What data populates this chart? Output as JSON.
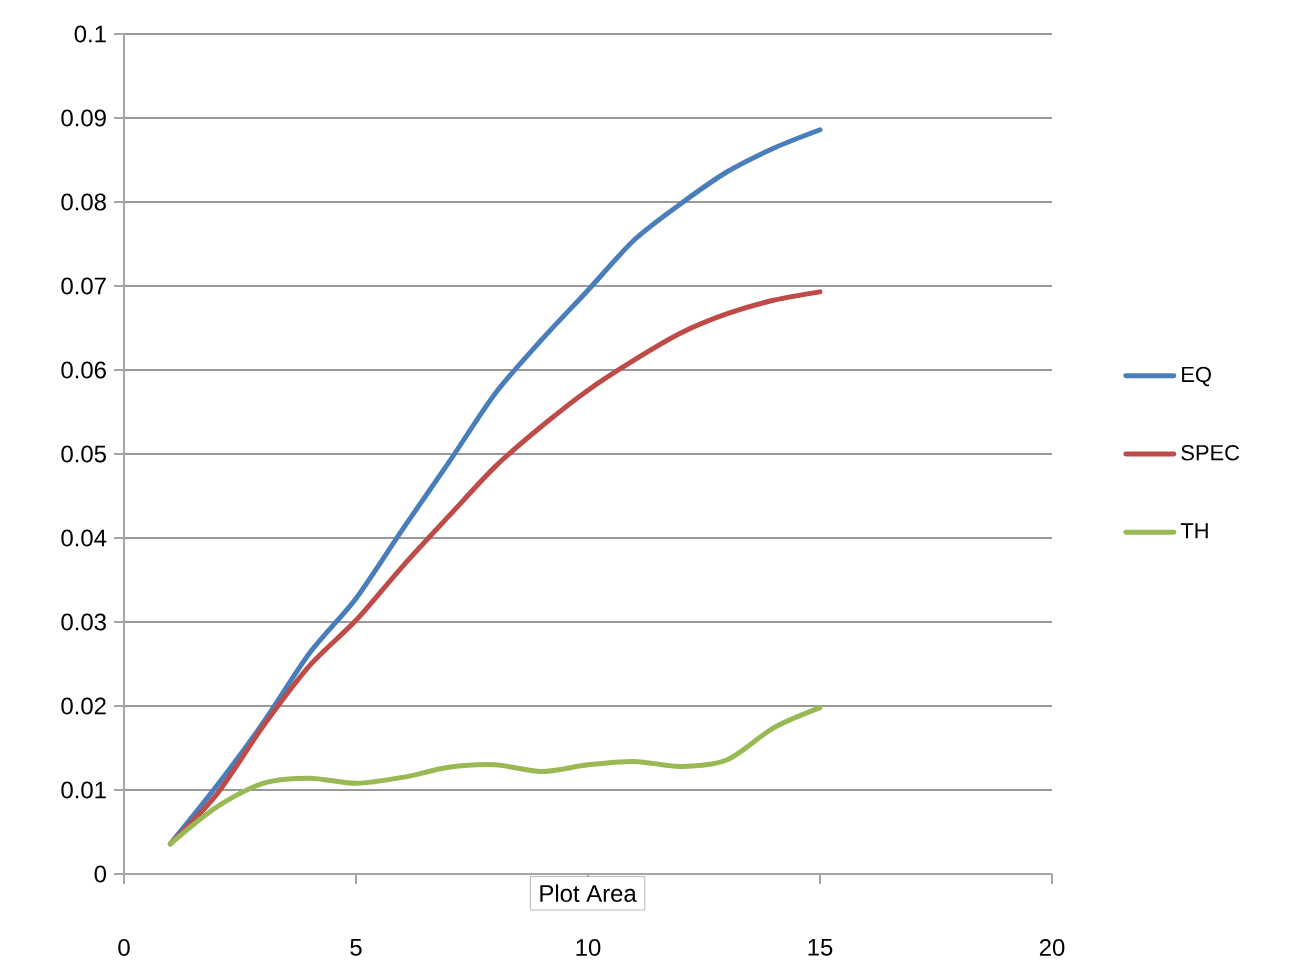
{
  "chart_data": {
    "type": "line",
    "x": [
      1,
      2,
      3,
      4,
      5,
      6,
      7,
      8,
      9,
      10,
      11,
      12,
      13,
      14,
      15
    ],
    "series": [
      {
        "name": "EQ",
        "color": "#4a7ebb",
        "values": [
          0.0036,
          0.0105,
          0.018,
          0.0263,
          0.0328,
          0.041,
          0.049,
          0.0572,
          0.0636,
          0.0695,
          0.0755,
          0.0798,
          0.0836,
          0.0864,
          0.0886
        ]
      },
      {
        "name": "SPEC",
        "color": "#be4b48",
        "values": [
          0.0036,
          0.0095,
          0.0176,
          0.0248,
          0.0302,
          0.0366,
          0.0426,
          0.0485,
          0.0533,
          0.0576,
          0.0612,
          0.0644,
          0.0667,
          0.0683,
          0.0693
        ]
      },
      {
        "name": "TH",
        "color": "#98b954",
        "values": [
          0.0036,
          0.008,
          0.0108,
          0.0114,
          0.0108,
          0.0115,
          0.0127,
          0.013,
          0.0122,
          0.013,
          0.0134,
          0.0128,
          0.0136,
          0.0174,
          0.0198
        ]
      }
    ],
    "xlim": [
      0,
      20
    ],
    "xticks": [
      0,
      5,
      10,
      15,
      20
    ],
    "ylim": [
      0,
      0.1
    ],
    "yticks": [
      0,
      0.01,
      0.02,
      0.03,
      0.04,
      0.05,
      0.06,
      0.07,
      0.08,
      0.09,
      0.1
    ],
    "grid": "y",
    "legend": "right",
    "marker": "none",
    "line_style": "solid",
    "annotations": [
      "Plot Area"
    ]
  }
}
